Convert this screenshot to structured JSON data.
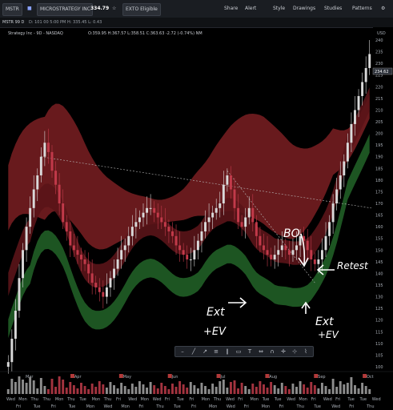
{
  "toolbar": {
    "symbol": "MSTR",
    "company": "MICROSTRATEGY INC A",
    "price": "334.79",
    "account": "EXTO Eligible",
    "buttons": [
      "Share",
      "Alert",
      "Style",
      "Drawings",
      "Studies",
      "Patterns"
    ]
  },
  "subbar": {
    "left": "MSTR 99 D",
    "quote": "D: 101 00 5:00 PM   H: 335.45   L: 0.43"
  },
  "chart_data": {
    "type": "candlestick",
    "title": "Strategy Inc - 9D - NASDAQ",
    "ohlc_text": "O:359.95  H:367.57  L:358.51  C:363.63  -2.72 (-0.74%)  NM",
    "y_axis_ticks": [
      240,
      235,
      230,
      225,
      220,
      215,
      210,
      205,
      200,
      195,
      190,
      185,
      180,
      175,
      170,
      165,
      160,
      155,
      150,
      145,
      140,
      135,
      130,
      125,
      120,
      115,
      110,
      105,
      100
    ],
    "y_axis_unit": "USD",
    "last_price_label": "234.62",
    "month_labels": [
      "Mar",
      "Apr",
      "May",
      "Jun",
      "Jul",
      "Aug",
      "Sep",
      "Oct"
    ],
    "day_labels_row1": [
      "Wed",
      "Mon",
      "Thu",
      "Thu",
      "Mon",
      "Thu",
      "Tue",
      "Mon",
      "Thu",
      "Fri",
      "Wed",
      "Mon",
      "Wed",
      "Fri",
      "Tue",
      "Fri",
      "Mon",
      "Thu",
      "Wed",
      "Fri",
      "Mon",
      "Tue",
      "Tue",
      "Wed",
      "Mon",
      "Fri",
      "Wed",
      "Fri",
      "Tue",
      "Tue",
      "Wed"
    ],
    "day_labels_row2": [
      "Fri",
      "Tue",
      "Fri",
      "Tue",
      "Mon",
      "Wed",
      "Mon",
      "Fri",
      "Thu",
      "Tue",
      "Fri",
      "Mon",
      "Wed",
      "Fri",
      "Mon",
      "Fri",
      "Thu",
      "Tue",
      "Wed",
      "Fri",
      "Thu"
    ],
    "closes": [
      102,
      112,
      124,
      138,
      150,
      160,
      168,
      176,
      182,
      190,
      196,
      192,
      184,
      178,
      170,
      162,
      158,
      152,
      150,
      148,
      146,
      144,
      140,
      136,
      134,
      132,
      130,
      134,
      138,
      142,
      146,
      150,
      152,
      156,
      160,
      162,
      164,
      166,
      168,
      168,
      166,
      164,
      162,
      160,
      158,
      156,
      152,
      150,
      148,
      146,
      146,
      150,
      154,
      158,
      162,
      164,
      166,
      168,
      170,
      178,
      182,
      176,
      168,
      162,
      160,
      164,
      168,
      162,
      156,
      152,
      150,
      148,
      146,
      148,
      150,
      152,
      150,
      148,
      150,
      152,
      156,
      154,
      150,
      146,
      144,
      146,
      150,
      156,
      162,
      170,
      176,
      182,
      188,
      196,
      204,
      210,
      216,
      222,
      228,
      234
    ],
    "resistance_line": {
      "from": 190,
      "to": 168
    },
    "support_line": {
      "from": 184,
      "to": 136
    }
  },
  "annotations": {
    "bo": "BO",
    "retest": "Retest",
    "ext_ev_1a": "Ext",
    "ext_ev_1b": "+EV",
    "ext_ev_2a": "Ext",
    "ext_ev_2b": "+EV"
  },
  "drawing_toolbar": [
    "minus-icon",
    "line-icon",
    "ray-icon",
    "fib-icon",
    "channel-icon",
    "rect-icon",
    "text-icon",
    "measure-icon",
    "magnet-icon",
    "cross-icon",
    "crosshair-icon",
    "zigzag-icon"
  ],
  "colors": {
    "up": "#d9d9d9",
    "down": "#c23a4a",
    "red_band": "#7a1e22",
    "green_band": "#1f5a24",
    "background": "#000000"
  }
}
